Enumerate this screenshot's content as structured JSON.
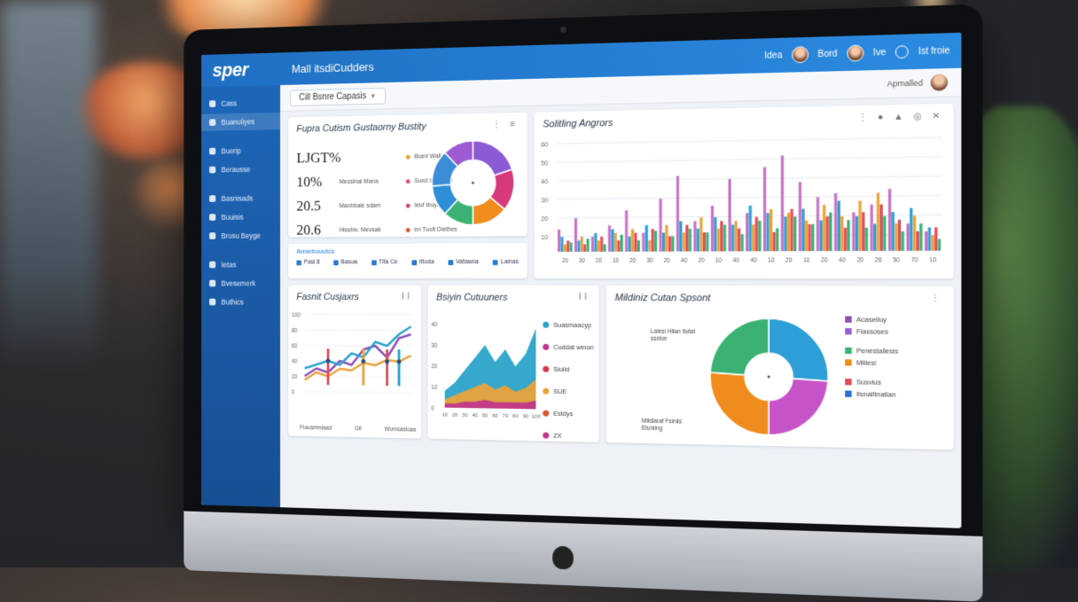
{
  "app": {
    "brand": "sper",
    "title": "Mall itsdiCudders",
    "top_right": {
      "label1": "Idea",
      "label2": "Bord",
      "label3": "Ive",
      "label4": "Ist froie"
    }
  },
  "subheader": {
    "dropdown": "Cill Bsnre Capasis",
    "right_label": "Apmalled"
  },
  "sidebar": {
    "items": [
      {
        "label": "Cass"
      },
      {
        "label": "Buanuliyes"
      },
      {
        "label": "Buerip"
      },
      {
        "label": "Berausse"
      },
      {
        "label": "Basnisads"
      },
      {
        "label": "Buuisis"
      },
      {
        "label": "Brosu Beyge"
      },
      {
        "label": "Ietas"
      },
      {
        "label": "Bvesemerk"
      },
      {
        "label": "Buthics"
      }
    ]
  },
  "panels": {
    "summary": {
      "title": "Fupra Cutism Gustaorny Bustity",
      "kpis": [
        {
          "value": "LJGT%",
          "desc": "",
          "label": "Buerl Wallaed",
          "color": "#e9a23b"
        },
        {
          "value": "10%",
          "desc": "Messinal Mana",
          "label": "Suxd Isyzblbie",
          "color": "#e94d8b"
        },
        {
          "value": "20.5",
          "desc": "Manhbale sdam",
          "label": "Ieuf Ibuysnaners",
          "color": "#c9477a"
        },
        {
          "value": "20.6",
          "desc": "Hlsshiv. Mevsak",
          "label": "en Tuolt Dietbes",
          "color": "#d65a3a"
        }
      ],
      "chart_data": {
        "type": "pie",
        "donut": true,
        "values": [
          20,
          16,
          14,
          12,
          12,
          14,
          12
        ],
        "colors": [
          "#8b5bd6",
          "#d63a7a",
          "#f08c1e",
          "#3bb273",
          "#2f8fd6",
          "#3b8dd8",
          "#9c5bd2"
        ]
      }
    },
    "mini": {
      "title": "Amiebouutcs",
      "cells": [
        {
          "label": "Pasl 8"
        },
        {
          "label": "Basua"
        },
        {
          "label": "Tlfa Ce"
        },
        {
          "label": "Ittoda"
        },
        {
          "label": "Vafaseia"
        },
        {
          "label": "Lainas"
        }
      ]
    },
    "bars": {
      "title": "Solitling Angrors",
      "yticks": [
        "60",
        "50",
        "40",
        "30",
        "20",
        "10"
      ],
      "xticks": [
        "20",
        "30",
        "20",
        "10",
        "20",
        "30",
        "20",
        "40",
        "20",
        "10",
        "40",
        "40",
        "10",
        "20",
        "10",
        "20",
        "40",
        "20",
        "26",
        "50",
        "70",
        "10"
      ],
      "chart_data": {
        "type": "bar",
        "series": [
          {
            "color": "#c672c4",
            "values": [
              12,
              18,
              8,
              14,
              22,
              10,
              28,
              40,
              16,
              24,
              38,
              20,
              44,
              50,
              36,
              28,
              30,
              20,
              24,
              32,
              14,
              10
            ]
          },
          {
            "color": "#2e9ed6",
            "values": [
              8,
              6,
              10,
              12,
              8,
              14,
              10,
              16,
              12,
              18,
              14,
              24,
              20,
              18,
              22,
              16,
              26,
              18,
              14,
              20,
              22,
              12
            ]
          },
          {
            "color": "#e9a23b",
            "values": [
              4,
              8,
              6,
              10,
              12,
              6,
              14,
              10,
              18,
              12,
              16,
              14,
              22,
              20,
              16,
              24,
              18,
              26,
              30,
              14,
              18,
              8
            ]
          },
          {
            "color": "#e34b5a",
            "values": [
              6,
              4,
              8,
              6,
              10,
              12,
              8,
              14,
              10,
              16,
              12,
              18,
              10,
              22,
              14,
              18,
              12,
              20,
              24,
              16,
              10,
              12
            ]
          },
          {
            "color": "#3bb273",
            "values": [
              5,
              7,
              4,
              9,
              6,
              11,
              8,
              12,
              10,
              14,
              9,
              16,
              12,
              18,
              14,
              20,
              16,
              12,
              18,
              10,
              14,
              6
            ]
          }
        ]
      }
    },
    "line": {
      "title": "Fasnit Cusjaxrs",
      "ctrl": "Il",
      "yticks": [
        "100",
        "80",
        "60",
        "40",
        "20",
        "0"
      ],
      "footer": [
        "Fiuusmmlaad",
        "Gil",
        "Wurxsasloaa"
      ],
      "chart_data": {
        "type": "line",
        "x": [
          0,
          1,
          2,
          3,
          4,
          5,
          6,
          7,
          8,
          9
        ],
        "series": [
          {
            "color": "#8b4fb6",
            "values": [
              20,
              30,
              25,
              40,
              35,
              55,
              60,
              45,
              70,
              75
            ]
          },
          {
            "color": "#2aa3c9",
            "values": [
              30,
              35,
              40,
              35,
              50,
              45,
              65,
              60,
              75,
              85
            ]
          },
          {
            "color": "#e9a23b",
            "values": [
              15,
              25,
              20,
              30,
              28,
              38,
              35,
              42,
              40,
              48
            ]
          }
        ],
        "ylim": [
          0,
          100
        ]
      }
    },
    "area": {
      "title": "Bsiyin Cutuuners",
      "ctrl": "Il",
      "yticks": [
        "40",
        "30",
        "20",
        "10",
        "0"
      ],
      "xticks": [
        "10",
        "20",
        "30",
        "40",
        "50",
        "60",
        "70",
        "80",
        "90",
        "100"
      ],
      "legend": [
        {
          "label": "Suasmaacyp",
          "color": "#2aa3c9"
        },
        {
          "label": "Cuddat winon",
          "color": "#c0378a"
        },
        {
          "label": "Siulid",
          "color": "#d63a4a"
        },
        {
          "label": "SUE",
          "color": "#e9a23b"
        },
        {
          "label": "Estdys",
          "color": "#d65a3a"
        },
        {
          "label": "ZX",
          "color": "#c0378a"
        }
      ],
      "chart_data": {
        "type": "area",
        "x": [
          10,
          20,
          30,
          40,
          50,
          60,
          70,
          80,
          90,
          100
        ],
        "series": [
          {
            "color": "#2aa3c9",
            "values": [
              8,
              12,
              18,
              24,
              30,
              22,
              28,
              20,
              26,
              38
            ]
          },
          {
            "color": "#e9a23b",
            "values": [
              4,
              6,
              8,
              10,
              12,
              9,
              11,
              8,
              10,
              14
            ]
          },
          {
            "color": "#c0378a",
            "values": [
              2,
              2,
              3,
              3,
              4,
              3,
              3,
              3,
              3,
              4
            ]
          }
        ],
        "ylim": [
          0,
          40
        ]
      }
    },
    "donut2": {
      "title": "Mildiniz Cutan Spsont",
      "ctrl": "⋮",
      "annot_top": "Lalesi Hilan tiutat ssxlon",
      "annot_bottom": "Mildiaraf Fsiniis Eluniing",
      "legend": [
        {
          "label": "Acaselluy",
          "color": "#8b4fb6"
        },
        {
          "label": "Flassoses",
          "color": "#9c5bd2"
        },
        {
          "label": "Penestallesis",
          "color": "#3bb273"
        },
        {
          "label": "Miliesi",
          "color": "#f08c1e"
        },
        {
          "label": "Susvius",
          "color": "#e34b5a"
        },
        {
          "label": "Ilsnaltinatian",
          "color": "#2e6fd6"
        }
      ],
      "chart_data": {
        "type": "pie",
        "donut": true,
        "values": [
          26,
          24,
          26,
          24
        ],
        "colors": [
          "#2e9ed6",
          "#c654c8",
          "#f08c1e",
          "#3bb273"
        ]
      }
    }
  }
}
